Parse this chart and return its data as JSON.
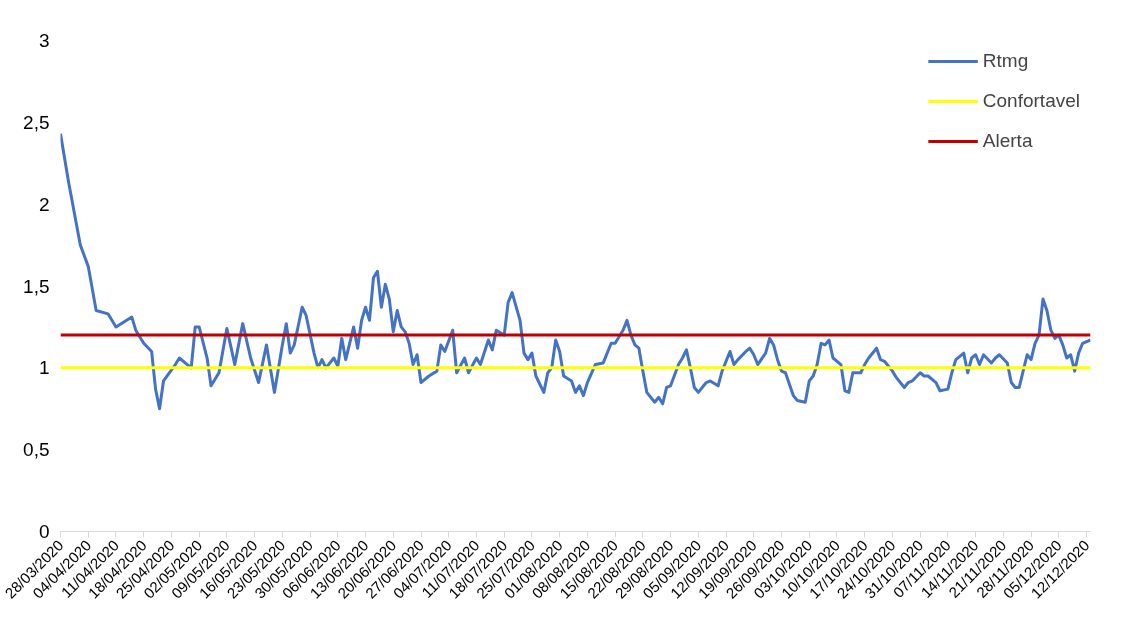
{
  "chart_data": {
    "type": "line",
    "x": [
      "2020-03-28",
      "2020-03-30",
      "2020-04-02",
      "2020-04-04",
      "2020-04-06",
      "2020-04-09",
      "2020-04-11",
      "2020-04-13",
      "2020-04-15",
      "2020-04-16",
      "2020-04-18",
      "2020-04-20",
      "2020-04-21",
      "2020-04-22",
      "2020-04-23",
      "2020-04-26",
      "2020-04-27",
      "2020-04-29",
      "2020-04-30",
      "2020-05-01",
      "2020-05-02",
      "2020-05-04",
      "2020-05-05",
      "2020-05-07",
      "2020-05-09",
      "2020-05-11",
      "2020-05-13",
      "2020-05-15",
      "2020-05-17",
      "2020-05-19",
      "2020-05-21",
      "2020-05-23",
      "2020-05-24",
      "2020-05-25",
      "2020-05-26",
      "2020-05-28",
      "2020-05-29",
      "2020-05-31",
      "2020-06-01",
      "2020-06-02",
      "2020-06-03",
      "2020-06-05",
      "2020-06-06",
      "2020-06-07",
      "2020-06-08",
      "2020-06-10",
      "2020-06-11",
      "2020-06-12",
      "2020-06-13",
      "2020-06-14",
      "2020-06-15",
      "2020-06-16",
      "2020-06-17",
      "2020-06-18",
      "2020-06-19",
      "2020-06-20",
      "2020-06-21",
      "2020-06-22",
      "2020-06-23",
      "2020-06-24",
      "2020-06-25",
      "2020-06-26",
      "2020-06-27",
      "2020-06-29",
      "2020-07-01",
      "2020-07-02",
      "2020-07-03",
      "2020-07-05",
      "2020-07-06",
      "2020-07-08",
      "2020-07-09",
      "2020-07-11",
      "2020-07-12",
      "2020-07-14",
      "2020-07-15",
      "2020-07-16",
      "2020-07-18",
      "2020-07-19",
      "2020-07-20",
      "2020-07-22",
      "2020-07-23",
      "2020-07-24",
      "2020-07-25",
      "2020-07-26",
      "2020-07-28",
      "2020-07-29",
      "2020-07-30",
      "2020-07-31",
      "2020-08-01",
      "2020-08-02",
      "2020-08-04",
      "2020-08-05",
      "2020-08-06",
      "2020-08-07",
      "2020-08-08",
      "2020-08-10",
      "2020-08-12",
      "2020-08-14",
      "2020-08-15",
      "2020-08-17",
      "2020-08-18",
      "2020-08-19",
      "2020-08-20",
      "2020-08-21",
      "2020-08-22",
      "2020-08-23",
      "2020-08-25",
      "2020-08-26",
      "2020-08-27",
      "2020-08-28",
      "2020-08-29",
      "2020-08-31",
      "2020-09-01",
      "2020-09-02",
      "2020-09-03",
      "2020-09-04",
      "2020-09-05",
      "2020-09-07",
      "2020-09-08",
      "2020-09-10",
      "2020-09-11",
      "2020-09-13",
      "2020-09-14",
      "2020-09-15",
      "2020-09-17",
      "2020-09-18",
      "2020-09-19",
      "2020-09-20",
      "2020-09-22",
      "2020-09-23",
      "2020-09-24",
      "2020-09-25",
      "2020-09-26",
      "2020-09-27",
      "2020-09-29",
      "2020-09-30",
      "2020-10-02",
      "2020-10-03",
      "2020-10-04",
      "2020-10-05",
      "2020-10-06",
      "2020-10-07",
      "2020-10-08",
      "2020-10-09",
      "2020-10-11",
      "2020-10-12",
      "2020-10-13",
      "2020-10-14",
      "2020-10-16",
      "2020-10-17",
      "2020-10-18",
      "2020-10-20",
      "2020-10-21",
      "2020-10-22",
      "2020-10-24",
      "2020-10-25",
      "2020-10-27",
      "2020-10-28",
      "2020-10-29",
      "2020-10-31",
      "2020-11-01",
      "2020-11-02",
      "2020-11-04",
      "2020-11-05",
      "2020-11-07",
      "2020-11-08",
      "2020-11-09",
      "2020-11-11",
      "2020-11-12",
      "2020-11-13",
      "2020-11-14",
      "2020-11-15",
      "2020-11-16",
      "2020-11-18",
      "2020-11-19",
      "2020-11-20",
      "2020-11-22",
      "2020-11-23",
      "2020-11-24",
      "2020-11-25",
      "2020-11-27",
      "2020-11-28",
      "2020-11-29",
      "2020-11-30",
      "2020-12-01",
      "2020-12-02",
      "2020-12-03",
      "2020-12-04",
      "2020-12-05",
      "2020-12-06",
      "2020-12-07",
      "2020-12-08",
      "2020-12-09",
      "2020-12-10",
      "2020-12-11",
      "2020-12-13"
    ],
    "series": [
      {
        "name": "Rtmg",
        "color": "#4472c4",
        "values": [
          2.43,
          2.14,
          1.75,
          1.62,
          1.35,
          1.33,
          1.25,
          1.28,
          1.31,
          1.23,
          1.15,
          1.1,
          0.87,
          0.75,
          0.92,
          1.02,
          1.06,
          1.02,
          1.0,
          1.25,
          1.25,
          1.06,
          0.89,
          0.97,
          1.24,
          1.02,
          1.27,
          1.06,
          0.91,
          1.14,
          0.85,
          1.14,
          1.27,
          1.09,
          1.14,
          1.37,
          1.32,
          1.09,
          1.0,
          1.05,
          1.0,
          1.06,
          1.01,
          1.18,
          1.05,
          1.25,
          1.12,
          1.29,
          1.37,
          1.29,
          1.55,
          1.59,
          1.37,
          1.51,
          1.42,
          1.22,
          1.35,
          1.25,
          1.22,
          1.15,
          1.02,
          1.08,
          0.91,
          0.95,
          0.98,
          1.14,
          1.1,
          1.23,
          0.97,
          1.06,
          0.97,
          1.06,
          1.02,
          1.17,
          1.11,
          1.23,
          1.2,
          1.4,
          1.46,
          1.29,
          1.09,
          1.05,
          1.09,
          0.95,
          0.85,
          0.97,
          1.0,
          1.17,
          1.1,
          0.95,
          0.92,
          0.85,
          0.89,
          0.83,
          0.91,
          1.02,
          1.03,
          1.15,
          1.15,
          1.23,
          1.29,
          1.2,
          1.14,
          1.12,
          0.98,
          0.85,
          0.79,
          0.82,
          0.78,
          0.88,
          0.89,
          1.02,
          1.06,
          1.11,
          1.0,
          0.88,
          0.85,
          0.91,
          0.92,
          0.89,
          0.98,
          1.1,
          1.02,
          1.05,
          1.1,
          1.12,
          1.08,
          1.02,
          1.09,
          1.18,
          1.14,
          1.05,
          0.98,
          0.97,
          0.83,
          0.8,
          0.79,
          0.92,
          0.95,
          1.02,
          1.15,
          1.14,
          1.17,
          1.06,
          1.02,
          0.86,
          0.85,
          0.97,
          0.97,
          1.02,
          1.06,
          1.12,
          1.05,
          1.04,
          0.98,
          0.94,
          0.88,
          0.91,
          0.92,
          0.97,
          0.95,
          0.95,
          0.91,
          0.86,
          0.87,
          0.97,
          1.05,
          1.09,
          0.97,
          1.06,
          1.08,
          1.02,
          1.08,
          1.03,
          1.06,
          1.08,
          1.03,
          0.91,
          0.88,
          0.88,
          1.08,
          1.05,
          1.15,
          1.2,
          1.42,
          1.35,
          1.23,
          1.18,
          1.2,
          1.14,
          1.06,
          1.08,
          0.98,
          1.09,
          1.15,
          1.17
        ]
      },
      {
        "name": "Confortavel",
        "color": "#ffff00",
        "x": [
          "2020-03-28",
          "2020-12-13"
        ],
        "values": [
          1,
          1
        ]
      },
      {
        "name": "Alerta",
        "color": "#c00000",
        "x": [
          "2020-03-28",
          "2020-12-13"
        ],
        "values": [
          1.2,
          1.2
        ]
      }
    ],
    "xlim": [
      "2020-03-28",
      "2020-12-13"
    ],
    "xticks": [
      {
        "value": "2020-03-28",
        "label": "28/03/2020"
      },
      {
        "value": "2020-04-04",
        "label": "04/04/2020"
      },
      {
        "value": "2020-04-11",
        "label": "11/04/2020"
      },
      {
        "value": "2020-04-18",
        "label": "18/04/2020"
      },
      {
        "value": "2020-04-25",
        "label": "25/04/2020"
      },
      {
        "value": "2020-05-02",
        "label": "02/05/2020"
      },
      {
        "value": "2020-05-09",
        "label": "09/05/2020"
      },
      {
        "value": "2020-05-16",
        "label": "16/05/2020"
      },
      {
        "value": "2020-05-23",
        "label": "23/05/2020"
      },
      {
        "value": "2020-05-30",
        "label": "30/05/2020"
      },
      {
        "value": "2020-06-06",
        "label": "06/06/2020"
      },
      {
        "value": "2020-06-13",
        "label": "13/06/2020"
      },
      {
        "value": "2020-06-20",
        "label": "20/06/2020"
      },
      {
        "value": "2020-06-27",
        "label": "27/06/2020"
      },
      {
        "value": "2020-07-04",
        "label": "04/07/2020"
      },
      {
        "value": "2020-07-11",
        "label": "11/07/2020"
      },
      {
        "value": "2020-07-18",
        "label": "18/07/2020"
      },
      {
        "value": "2020-07-25",
        "label": "25/07/2020"
      },
      {
        "value": "2020-08-01",
        "label": "01/08/2020"
      },
      {
        "value": "2020-08-08",
        "label": "08/08/2020"
      },
      {
        "value": "2020-08-15",
        "label": "15/08/2020"
      },
      {
        "value": "2020-08-22",
        "label": "22/08/2020"
      },
      {
        "value": "2020-08-29",
        "label": "29/08/2020"
      },
      {
        "value": "2020-09-05",
        "label": "05/09/2020"
      },
      {
        "value": "2020-09-12",
        "label": "12/09/2020"
      },
      {
        "value": "2020-09-19",
        "label": "19/09/2020"
      },
      {
        "value": "2020-09-26",
        "label": "26/09/2020"
      },
      {
        "value": "2020-10-03",
        "label": "03/10/2020"
      },
      {
        "value": "2020-10-10",
        "label": "10/10/2020"
      },
      {
        "value": "2020-10-17",
        "label": "17/10/2020"
      },
      {
        "value": "2020-10-24",
        "label": "24/10/2020"
      },
      {
        "value": "2020-10-31",
        "label": "31/10/2020"
      },
      {
        "value": "2020-11-07",
        "label": "07/11/2020"
      },
      {
        "value": "2020-11-14",
        "label": "14/11/2020"
      },
      {
        "value": "2020-11-21",
        "label": "21/11/2020"
      },
      {
        "value": "2020-11-28",
        "label": "28/11/2020"
      },
      {
        "value": "2020-12-05",
        "label": "05/12/2020"
      },
      {
        "value": "2020-12-12",
        "label": "12/12/2020"
      }
    ],
    "ylim": [
      0,
      3
    ],
    "yticks": [
      0,
      {
        "value": 0.5,
        "label": "0,5"
      },
      1,
      {
        "value": 1.5,
        "label": "1,5"
      },
      2,
      {
        "value": 2.5,
        "label": "2,5"
      },
      3
    ],
    "grid": false,
    "legend": "top right",
    "marker": "none",
    "line_style": "solid"
  }
}
